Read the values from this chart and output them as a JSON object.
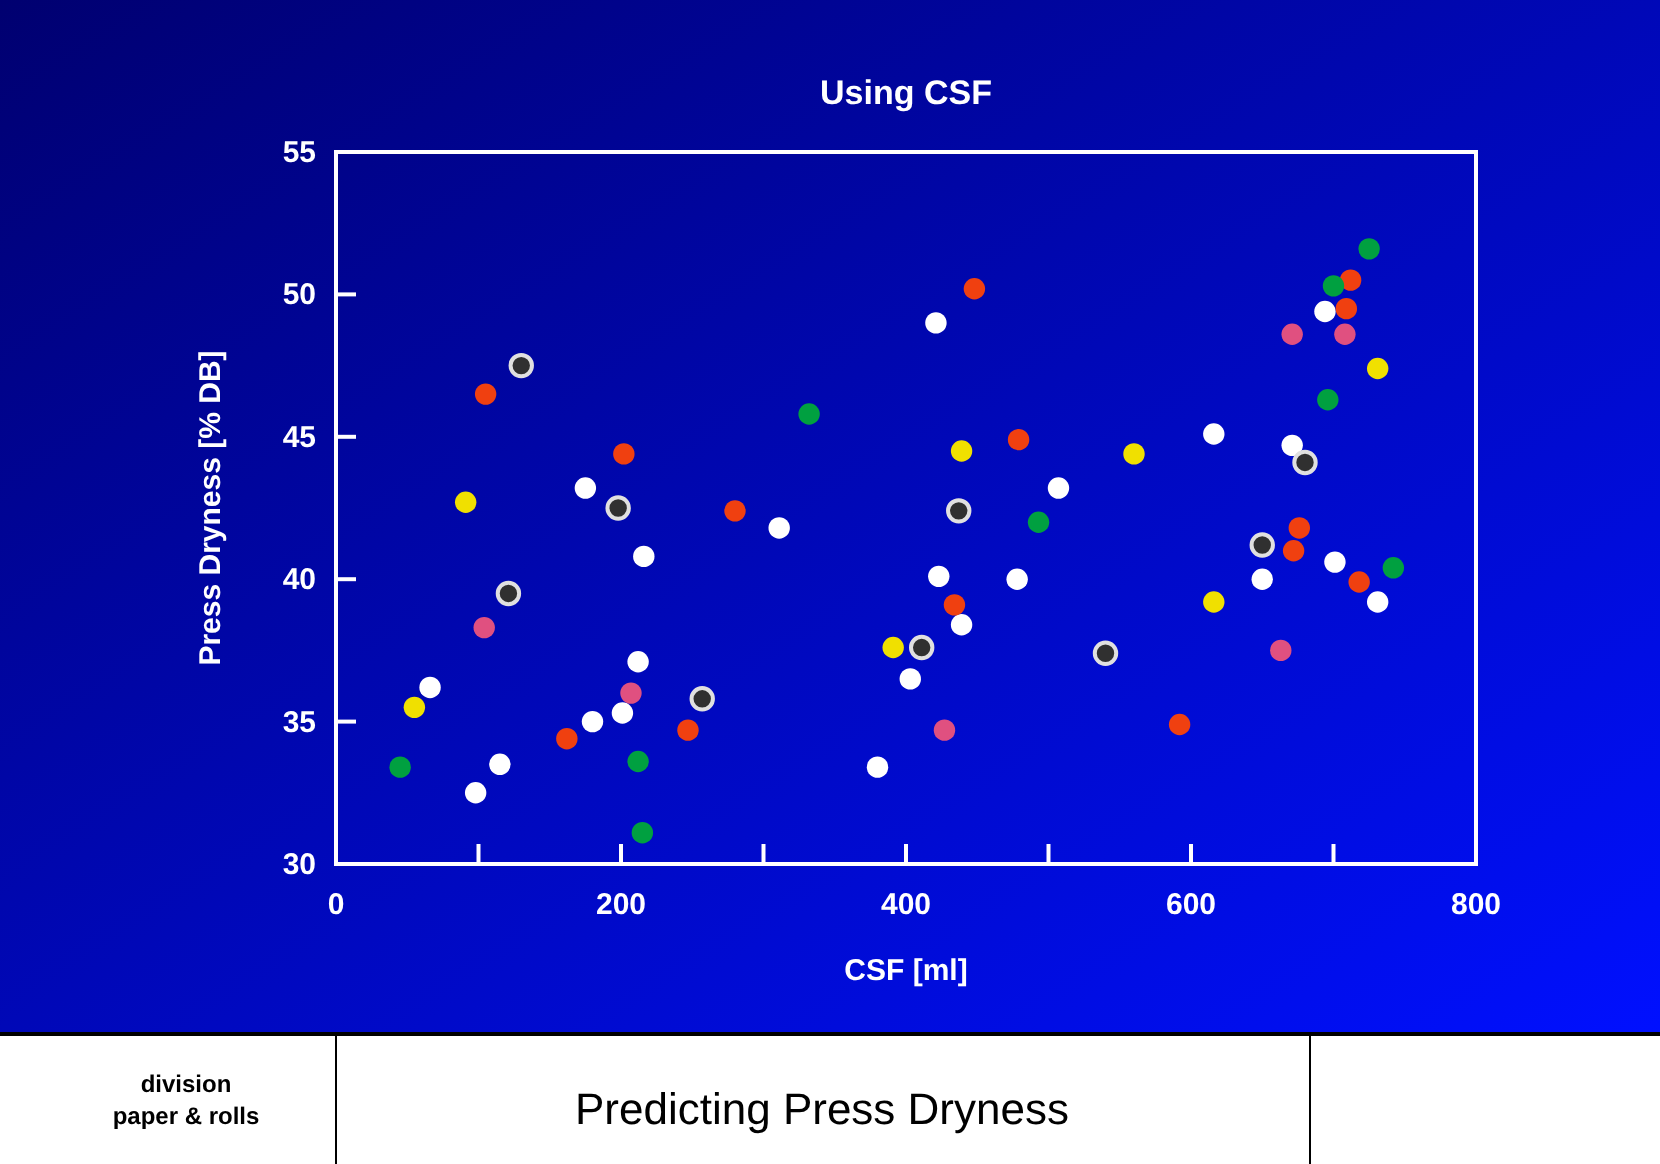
{
  "chart_data": {
    "type": "scatter",
    "title": "Using CSF",
    "xlabel": "CSF  [ml]",
    "ylabel": "Press Dryness  [% DB]",
    "xlim": [
      0,
      800
    ],
    "xticks": [
      0,
      {
        "value": 100,
        "label": null
      },
      200,
      {
        "value": 300,
        "label": null
      },
      400,
      {
        "value": 500,
        "label": null
      },
      600,
      {
        "value": 700,
        "label": null
      },
      800
    ],
    "ylim": [
      30,
      55
    ],
    "yticks": [
      30,
      35,
      40,
      45,
      50,
      55
    ],
    "grid": false,
    "marker": "circle",
    "annotations": [
      "division\npaper & rolls",
      "Predicting Press Dryness"
    ],
    "series": [
      {
        "color": "#ffffff",
        "x": [
          175,
          311,
          216,
          212,
          66,
          180,
          201,
          115,
          98,
          694,
          421,
          616,
          671,
          507,
          701,
          423,
          478,
          650,
          731,
          439,
          403,
          380
        ],
        "values": [
          43.2,
          41.8,
          40.8,
          37.1,
          36.2,
          35.0,
          35.3,
          33.5,
          32.5,
          49.4,
          49.0,
          45.1,
          44.7,
          43.2,
          40.6,
          40.1,
          40.0,
          40.0,
          39.2,
          38.4,
          36.5,
          33.4
        ]
      },
      {
        "color": "#303030",
        "x": [
          130,
          198,
          121,
          257,
          680,
          437,
          650,
          411,
          540
        ],
        "values": [
          47.5,
          42.5,
          39.5,
          35.8,
          44.1,
          42.4,
          41.2,
          37.6,
          37.4
        ]
      },
      {
        "color": "#f04010",
        "x": [
          105,
          202,
          280,
          162,
          247,
          712,
          448,
          709,
          479,
          676,
          672,
          718,
          434,
          592
        ],
        "values": [
          46.5,
          44.4,
          42.4,
          34.4,
          34.7,
          50.5,
          50.2,
          49.5,
          44.9,
          41.8,
          41.0,
          39.9,
          39.1,
          34.9
        ]
      },
      {
        "color": "#00a040",
        "x": [
          332,
          45,
          212,
          215,
          725,
          700,
          696,
          493,
          742
        ],
        "values": [
          45.8,
          33.4,
          33.6,
          31.1,
          51.6,
          50.3,
          46.3,
          42.0,
          40.4
        ]
      },
      {
        "color": "#f0e000",
        "x": [
          91,
          55,
          731,
          439,
          560,
          616,
          391
        ],
        "values": [
          42.7,
          35.5,
          47.4,
          44.5,
          44.4,
          39.2,
          37.6
        ]
      },
      {
        "color": "#e05080",
        "x": [
          104,
          207,
          671,
          708,
          663,
          427
        ],
        "values": [
          38.3,
          36.0,
          48.6,
          48.6,
          37.5,
          34.7
        ]
      }
    ]
  }
}
